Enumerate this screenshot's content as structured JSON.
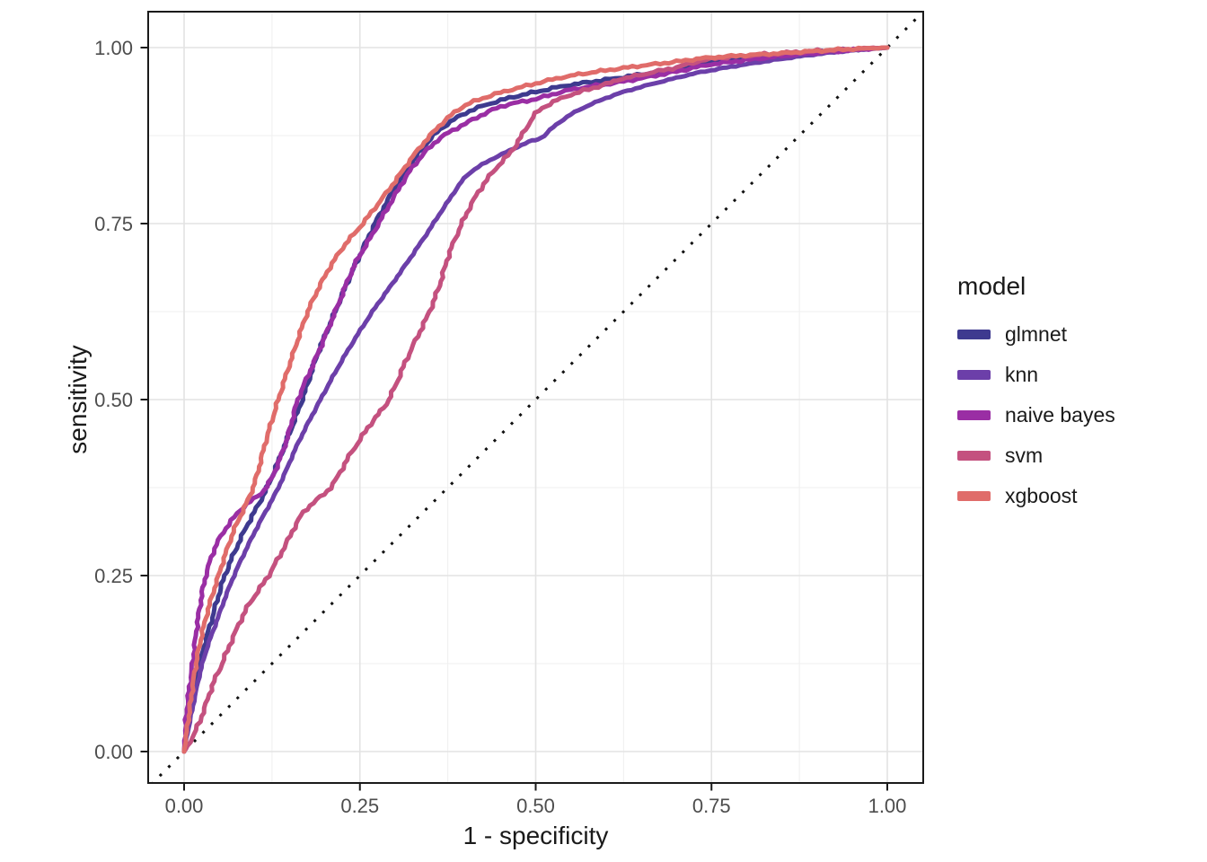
{
  "chart_data": {
    "type": "line",
    "title": "",
    "xlabel": "1 - specificity",
    "ylabel": "sensitivity",
    "xlim": [
      -0.05,
      1.05
    ],
    "ylim": [
      -0.05,
      1.05
    ],
    "grid": true,
    "x_ticks": {
      "values": [
        0,
        0.25,
        0.5,
        0.75,
        1.0
      ],
      "labels": [
        "0.00",
        "0.25",
        "0.50",
        "0.75",
        "1.00"
      ]
    },
    "y_ticks": {
      "values": [
        0,
        0.25,
        0.5,
        0.75,
        1.0
      ],
      "labels": [
        "0.00",
        "0.25",
        "0.50",
        "0.75",
        "1.00"
      ]
    },
    "minor_ticks": [
      0.125,
      0.375,
      0.625,
      0.875
    ],
    "legend_title": "model",
    "legend_position": "right",
    "reference_line": {
      "style": "dotted",
      "color": "#111111",
      "from": [
        0,
        0
      ],
      "to": [
        1,
        1
      ]
    },
    "series": [
      {
        "name": "glmnet",
        "color": "#3E3A8F",
        "points": [
          [
            0,
            0
          ],
          [
            0.007,
            0.05
          ],
          [
            0.022,
            0.125
          ],
          [
            0.04,
            0.19
          ],
          [
            0.058,
            0.25
          ],
          [
            0.085,
            0.312
          ],
          [
            0.118,
            0.375
          ],
          [
            0.145,
            0.44
          ],
          [
            0.168,
            0.5
          ],
          [
            0.19,
            0.565
          ],
          [
            0.215,
            0.625
          ],
          [
            0.233,
            0.668
          ],
          [
            0.25,
            0.705
          ],
          [
            0.275,
            0.757
          ],
          [
            0.3,
            0.8
          ],
          [
            0.33,
            0.845
          ],
          [
            0.36,
            0.88
          ],
          [
            0.4,
            0.907
          ],
          [
            0.45,
            0.925
          ],
          [
            0.5,
            0.937
          ],
          [
            0.55,
            0.947
          ],
          [
            0.625,
            0.958
          ],
          [
            0.7,
            0.97
          ],
          [
            0.75,
            0.979
          ],
          [
            0.85,
            0.99
          ],
          [
            0.93,
            0.996
          ],
          [
            1,
            1
          ]
        ]
      },
      {
        "name": "knn",
        "color": "#6C3FA9",
        "points": [
          [
            0,
            0
          ],
          [
            0.008,
            0.042
          ],
          [
            0.026,
            0.125
          ],
          [
            0.048,
            0.19
          ],
          [
            0.071,
            0.25
          ],
          [
            0.101,
            0.313
          ],
          [
            0.134,
            0.375
          ],
          [
            0.163,
            0.44
          ],
          [
            0.194,
            0.5
          ],
          [
            0.23,
            0.565
          ],
          [
            0.268,
            0.625
          ],
          [
            0.3,
            0.67
          ],
          [
            0.34,
            0.728
          ],
          [
            0.373,
            0.778
          ],
          [
            0.402,
            0.818
          ],
          [
            0.435,
            0.84
          ],
          [
            0.468,
            0.856
          ],
          [
            0.49,
            0.866
          ],
          [
            0.508,
            0.872
          ],
          [
            0.525,
            0.887
          ],
          [
            0.55,
            0.905
          ],
          [
            0.58,
            0.92
          ],
          [
            0.625,
            0.937
          ],
          [
            0.7,
            0.957
          ],
          [
            0.75,
            0.968
          ],
          [
            0.85,
            0.984
          ],
          [
            0.93,
            0.994
          ],
          [
            1,
            1
          ]
        ]
      },
      {
        "name": "naive bayes",
        "color": "#9A2EA4",
        "points": [
          [
            0,
            0
          ],
          [
            0.004,
            0.06
          ],
          [
            0.012,
            0.125
          ],
          [
            0.02,
            0.19
          ],
          [
            0.031,
            0.25
          ],
          [
            0.049,
            0.3
          ],
          [
            0.08,
            0.343
          ],
          [
            0.118,
            0.377
          ],
          [
            0.145,
            0.44
          ],
          [
            0.162,
            0.5
          ],
          [
            0.19,
            0.565
          ],
          [
            0.215,
            0.625
          ],
          [
            0.242,
            0.69
          ],
          [
            0.268,
            0.735
          ],
          [
            0.295,
            0.782
          ],
          [
            0.325,
            0.83
          ],
          [
            0.36,
            0.868
          ],
          [
            0.4,
            0.892
          ],
          [
            0.45,
            0.916
          ],
          [
            0.5,
            0.927
          ],
          [
            0.55,
            0.94
          ],
          [
            0.625,
            0.952
          ],
          [
            0.7,
            0.966
          ],
          [
            0.75,
            0.976
          ],
          [
            0.85,
            0.988
          ],
          [
            0.93,
            0.995
          ],
          [
            1,
            1
          ]
        ]
      },
      {
        "name": "svm",
        "color": "#C4517F",
        "points": [
          [
            0,
            0
          ],
          [
            0.012,
            0.02
          ],
          [
            0.025,
            0.05
          ],
          [
            0.04,
            0.093
          ],
          [
            0.054,
            0.125
          ],
          [
            0.07,
            0.163
          ],
          [
            0.09,
            0.205
          ],
          [
            0.12,
            0.25
          ],
          [
            0.145,
            0.295
          ],
          [
            0.17,
            0.34
          ],
          [
            0.208,
            0.375
          ],
          [
            0.235,
            0.42
          ],
          [
            0.265,
            0.465
          ],
          [
            0.291,
            0.5
          ],
          [
            0.32,
            0.565
          ],
          [
            0.349,
            0.625
          ],
          [
            0.365,
            0.668
          ],
          [
            0.378,
            0.71
          ],
          [
            0.402,
            0.765
          ],
          [
            0.422,
            0.8
          ],
          [
            0.443,
            0.828
          ],
          [
            0.465,
            0.852
          ],
          [
            0.482,
            0.878
          ],
          [
            0.5,
            0.906
          ],
          [
            0.52,
            0.92
          ],
          [
            0.55,
            0.933
          ],
          [
            0.6,
            0.948
          ],
          [
            0.625,
            0.956
          ],
          [
            0.7,
            0.972
          ],
          [
            0.75,
            0.984
          ],
          [
            0.85,
            0.992
          ],
          [
            0.93,
            0.997
          ],
          [
            1,
            1
          ]
        ]
      },
      {
        "name": "xgboost",
        "color": "#E06C6A",
        "points": [
          [
            0,
            0
          ],
          [
            0.006,
            0.045
          ],
          [
            0.017,
            0.125
          ],
          [
            0.031,
            0.19
          ],
          [
            0.049,
            0.25
          ],
          [
            0.07,
            0.312
          ],
          [
            0.098,
            0.375
          ],
          [
            0.116,
            0.44
          ],
          [
            0.134,
            0.5
          ],
          [
            0.155,
            0.565
          ],
          [
            0.176,
            0.625
          ],
          [
            0.2,
            0.675
          ],
          [
            0.225,
            0.715
          ],
          [
            0.25,
            0.745
          ],
          [
            0.275,
            0.777
          ],
          [
            0.3,
            0.81
          ],
          [
            0.325,
            0.845
          ],
          [
            0.35,
            0.875
          ],
          [
            0.375,
            0.9
          ],
          [
            0.4,
            0.918
          ],
          [
            0.425,
            0.928
          ],
          [
            0.45,
            0.936
          ],
          [
            0.5,
            0.949
          ],
          [
            0.55,
            0.96
          ],
          [
            0.625,
            0.971
          ],
          [
            0.7,
            0.98
          ],
          [
            0.75,
            0.986
          ],
          [
            0.85,
            0.992
          ],
          [
            0.93,
            0.997
          ],
          [
            1,
            1
          ]
        ]
      }
    ]
  },
  "style_colors": {
    "grid_major": "#E3E3E3",
    "grid_minor": "#EFEFEF",
    "panel_border": "#1A1A1A",
    "tick_label": "#4D4D4D",
    "axis_title": "#1A1A1A"
  }
}
